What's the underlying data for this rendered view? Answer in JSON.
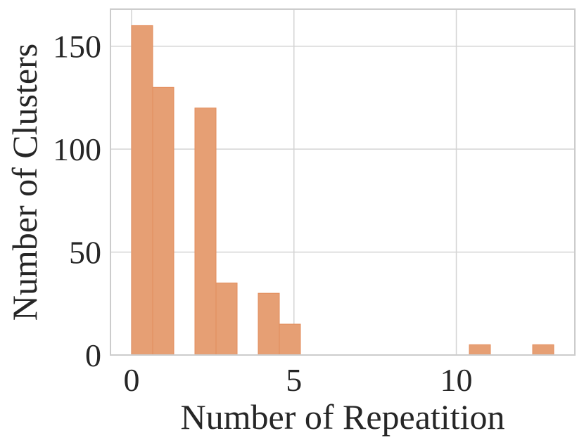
{
  "chart_data": {
    "type": "bar",
    "title": "",
    "xlabel": "Number of Repeatition",
    "ylabel": "Number of Clusters",
    "xlim": [
      -0.65,
      13.65
    ],
    "ylim": [
      0,
      168
    ],
    "grid": true,
    "bar_color": "#e69f74",
    "bar_edge_color": "#e38d5c",
    "grid_color": "#d4d4d4",
    "axis_color": "#cccccc",
    "x_ticks": [
      0,
      5,
      10
    ],
    "x_tick_labels": [
      "0",
      "5",
      "10"
    ],
    "y_ticks": [
      0,
      50,
      100,
      150
    ],
    "y_tick_labels": [
      "0",
      "50",
      "100",
      "150"
    ],
    "bins": [
      {
        "x0": 0.0,
        "x1": 0.65,
        "value": 160
      },
      {
        "x0": 0.65,
        "x1": 1.3,
        "value": 130
      },
      {
        "x0": 1.95,
        "x1": 2.6,
        "value": 120
      },
      {
        "x0": 2.6,
        "x1": 3.25,
        "value": 35
      },
      {
        "x0": 3.9,
        "x1": 4.55,
        "value": 30
      },
      {
        "x0": 4.55,
        "x1": 5.2,
        "value": 15
      },
      {
        "x0": 10.4,
        "x1": 11.05,
        "value": 5
      },
      {
        "x0": 12.35,
        "x1": 13.0,
        "value": 5
      }
    ]
  }
}
